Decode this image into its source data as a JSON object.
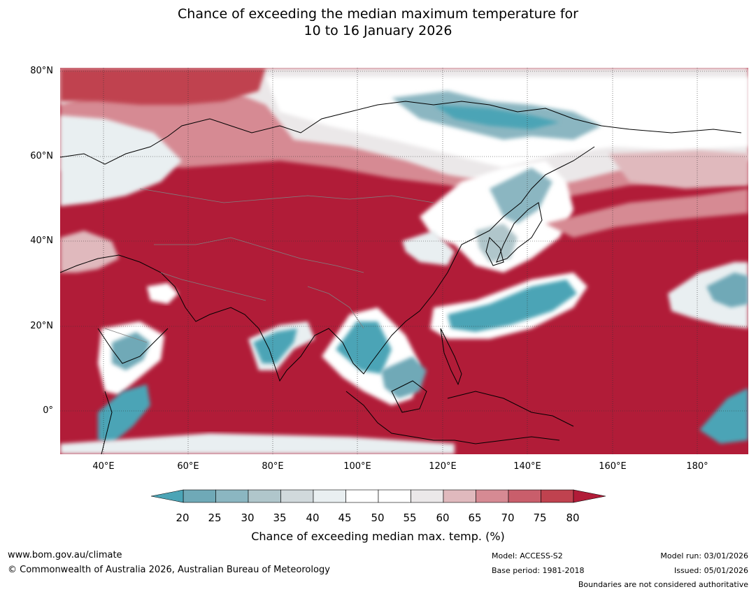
{
  "title": {
    "line1": "Chance of exceeding the median maximum temperature for",
    "line2": "10 to 16 January 2026"
  },
  "map": {
    "lat_labels": [
      "80°N",
      "60°N",
      "40°N",
      "20°N",
      "0°"
    ],
    "lon_labels": [
      "40°E",
      "60°E",
      "80°E",
      "100°E",
      "120°E",
      "140°E",
      "160°E",
      "180°"
    ],
    "colors": {
      "above_80": "#b11c38",
      "r75": "#c0424f",
      "r70": "#c95e6b",
      "r65": "#d68a93",
      "r60": "#e0b9bd",
      "n55": "#ebe8e9",
      "neutral": "#ffffff",
      "b45": "#e9eff1",
      "b40": "#d1d9dc",
      "b35": "#b0c6cb",
      "b30": "#8bb6c1",
      "b25": "#6fa9b7",
      "below_20": "#4ba4b6",
      "coast": "#000000",
      "border": "#808080"
    }
  },
  "colorbar": {
    "ticks": [
      "20",
      "25",
      "30",
      "35",
      "40",
      "45",
      "50",
      "55",
      "60",
      "65",
      "70",
      "75",
      "80"
    ],
    "colors": [
      "#6fa9b7",
      "#8bb6c1",
      "#b0c6cb",
      "#d1d9dc",
      "#e9eff1",
      "#ffffff",
      "#ffffff",
      "#ebe8e9",
      "#e0b9bd",
      "#d68a93",
      "#c95e6b",
      "#c0424f"
    ],
    "low_color": "#4ba4b6",
    "high_color": "#b11c38",
    "title": "Chance of exceeding median max. temp. (%)"
  },
  "footer": {
    "website": "www.bom.gov.au/climate",
    "copyright": "© Commonwealth of Australia 2026, Australian Bureau of Meteorology",
    "model": "Model: ACCESS-S2",
    "base_period": "Base period: 1981-2018",
    "model_run": "Model run: 03/01/2026",
    "issued": "Issued: 05/01/2026",
    "disclaimer": "Boundaries are not considered authoritative"
  }
}
